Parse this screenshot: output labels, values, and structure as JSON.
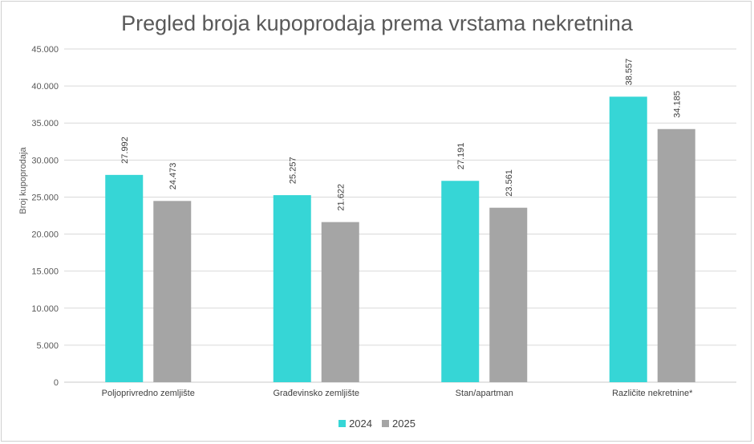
{
  "chart_data": {
    "type": "bar",
    "title": "Pregled broja kupoprodaja prema vrstama nekretnina",
    "ylabel": "Broj kupoprodaja",
    "xlabel": "",
    "ylim": [
      0,
      45000
    ],
    "ytick_step": 5000,
    "ytick_labels": [
      "0",
      "5.000",
      "10.000",
      "15.000",
      "20.000",
      "25.000",
      "30.000",
      "35.000",
      "40.000",
      "45.000"
    ],
    "grid": true,
    "legend_position": "bottom",
    "categories": [
      "Poljoprivredno zemljište",
      "Građevinsko zemljište",
      "Stan/apartman",
      "Različite nekretnine*"
    ],
    "series": [
      {
        "name": "2024",
        "color": "#36D6D6",
        "values": [
          27992,
          25257,
          27191,
          38557
        ],
        "labels": [
          "27.992",
          "25.257",
          "27.191",
          "38.557"
        ]
      },
      {
        "name": "2025",
        "color": "#A5A5A5",
        "values": [
          24473,
          21622,
          23561,
          34185
        ],
        "labels": [
          "24.473",
          "21.622",
          "23.561",
          "34.185"
        ]
      }
    ]
  }
}
